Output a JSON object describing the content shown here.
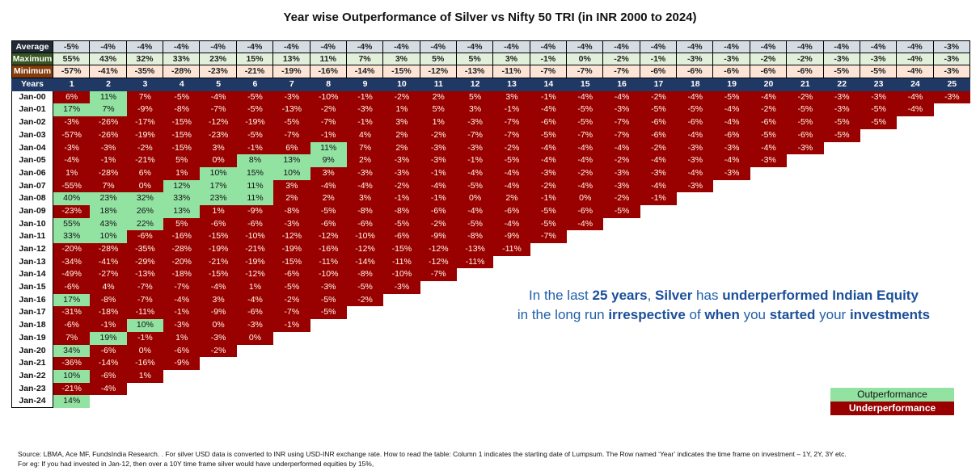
{
  "chart_data": {
    "type": "table",
    "title": "Year wise Outperformance of Silver vs Nifty 50 TRI (in INR 2000 to 2024)",
    "summary_rows": [
      {
        "label": "Average",
        "values": [
          "-5%",
          "-4%",
          "-4%",
          "-4%",
          "-4%",
          "-4%",
          "-4%",
          "-4%",
          "-4%",
          "-4%",
          "-4%",
          "-4%",
          "-4%",
          "-4%",
          "-4%",
          "-4%",
          "-4%",
          "-4%",
          "-4%",
          "-4%",
          "-4%",
          "-4%",
          "-4%",
          "-4%",
          "-3%"
        ]
      },
      {
        "label": "Maximum",
        "values": [
          "55%",
          "43%",
          "32%",
          "33%",
          "23%",
          "15%",
          "13%",
          "11%",
          "7%",
          "3%",
          "5%",
          "5%",
          "3%",
          "-1%",
          "0%",
          "-2%",
          "-1%",
          "-3%",
          "-3%",
          "-2%",
          "-2%",
          "-3%",
          "-3%",
          "-4%",
          "-3%"
        ]
      },
      {
        "label": "Minimum",
        "values": [
          "-57%",
          "-41%",
          "-35%",
          "-28%",
          "-23%",
          "-21%",
          "-19%",
          "-16%",
          "-14%",
          "-15%",
          "-12%",
          "-13%",
          "-11%",
          "-7%",
          "-7%",
          "-7%",
          "-6%",
          "-6%",
          "-6%",
          "-6%",
          "-6%",
          "-5%",
          "-5%",
          "-4%",
          "-3%"
        ]
      }
    ],
    "years_label": "Years",
    "years": [
      "1",
      "2",
      "3",
      "4",
      "5",
      "6",
      "7",
      "8",
      "9",
      "10",
      "11",
      "12",
      "13",
      "14",
      "15",
      "16",
      "17",
      "18",
      "19",
      "20",
      "21",
      "22",
      "23",
      "24",
      "25"
    ],
    "rows": [
      {
        "start": "Jan-00",
        "values": [
          "6%",
          "11%",
          "7%",
          "-5%",
          "-4%",
          "-5%",
          "-3%",
          "-10%",
          "-1%",
          "-2%",
          "2%",
          "5%",
          "3%",
          "-1%",
          "-4%",
          "-4%",
          "-2%",
          "-4%",
          "-5%",
          "-4%",
          "-2%",
          "-3%",
          "-3%",
          "-4%",
          "-3%"
        ],
        "outperform_years": [
          2
        ]
      },
      {
        "start": "Jan-01",
        "values": [
          "17%",
          "7%",
          "-9%",
          "-8%",
          "-7%",
          "-5%",
          "-13%",
          "-2%",
          "-3%",
          "1%",
          "5%",
          "3%",
          "-1%",
          "-4%",
          "-5%",
          "-3%",
          "-5%",
          "-5%",
          "-4%",
          "-2%",
          "-5%",
          "-3%",
          "-5%",
          "-4%"
        ],
        "outperform_years": [
          1,
          2
        ]
      },
      {
        "start": "Jan-02",
        "values": [
          "-3%",
          "-26%",
          "-17%",
          "-15%",
          "-12%",
          "-19%",
          "-5%",
          "-7%",
          "-1%",
          "3%",
          "1%",
          "-3%",
          "-7%",
          "-6%",
          "-5%",
          "-7%",
          "-6%",
          "-6%",
          "-4%",
          "-6%",
          "-5%",
          "-5%",
          "-5%"
        ],
        "outperform_years": []
      },
      {
        "start": "Jan-03",
        "values": [
          "-57%",
          "-26%",
          "-19%",
          "-15%",
          "-23%",
          "-5%",
          "-7%",
          "-1%",
          "4%",
          "2%",
          "-2%",
          "-7%",
          "-7%",
          "-5%",
          "-7%",
          "-7%",
          "-6%",
          "-4%",
          "-6%",
          "-5%",
          "-6%",
          "-5%"
        ],
        "outperform_years": []
      },
      {
        "start": "Jan-04",
        "values": [
          "-3%",
          "-3%",
          "-2%",
          "-15%",
          "3%",
          "-1%",
          "6%",
          "11%",
          "7%",
          "2%",
          "-3%",
          "-3%",
          "-2%",
          "-4%",
          "-4%",
          "-4%",
          "-2%",
          "-3%",
          "-3%",
          "-4%",
          "-3%"
        ],
        "outperform_years": [
          8
        ]
      },
      {
        "start": "Jan-05",
        "values": [
          "-4%",
          "-1%",
          "-21%",
          "5%",
          "0%",
          "8%",
          "13%",
          "9%",
          "2%",
          "-3%",
          "-3%",
          "-1%",
          "-5%",
          "-4%",
          "-4%",
          "-2%",
          "-4%",
          "-3%",
          "-4%",
          "-3%"
        ],
        "outperform_years": [
          6,
          7,
          8
        ]
      },
      {
        "start": "Jan-06",
        "values": [
          "1%",
          "-28%",
          "6%",
          "1%",
          "10%",
          "15%",
          "10%",
          "3%",
          "-3%",
          "-3%",
          "-1%",
          "-4%",
          "-4%",
          "-3%",
          "-2%",
          "-3%",
          "-3%",
          "-4%",
          "-3%"
        ],
        "outperform_years": [
          5,
          6,
          7
        ]
      },
      {
        "start": "Jan-07",
        "values": [
          "-55%",
          "7%",
          "0%",
          "12%",
          "17%",
          "11%",
          "3%",
          "-4%",
          "-4%",
          "-2%",
          "-4%",
          "-5%",
          "-4%",
          "-2%",
          "-4%",
          "-3%",
          "-4%",
          "-3%"
        ],
        "outperform_years": [
          4,
          5,
          6
        ]
      },
      {
        "start": "Jan-08",
        "values": [
          "40%",
          "23%",
          "32%",
          "33%",
          "23%",
          "11%",
          "2%",
          "2%",
          "3%",
          "-1%",
          "-1%",
          "0%",
          "2%",
          "-1%",
          "0%",
          "-2%",
          "-1%"
        ],
        "outperform_years": [
          1,
          2,
          3,
          4,
          5,
          6
        ]
      },
      {
        "start": "Jan-09",
        "values": [
          "-23%",
          "18%",
          "26%",
          "13%",
          "1%",
          "-9%",
          "-8%",
          "-5%",
          "-8%",
          "-8%",
          "-6%",
          "-4%",
          "-6%",
          "-5%",
          "-6%",
          "-5%"
        ],
        "outperform_years": [
          2,
          3,
          4
        ]
      },
      {
        "start": "Jan-10",
        "values": [
          "55%",
          "43%",
          "22%",
          "5%",
          "-6%",
          "-6%",
          "-3%",
          "-6%",
          "-6%",
          "-5%",
          "-2%",
          "-5%",
          "-4%",
          "-5%",
          "-4%"
        ],
        "outperform_years": [
          1,
          2,
          3
        ]
      },
      {
        "start": "Jan-11",
        "values": [
          "33%",
          "10%",
          "-6%",
          "-16%",
          "-15%",
          "-10%",
          "-12%",
          "-12%",
          "-10%",
          "-6%",
          "-9%",
          "-8%",
          "-9%",
          "-7%"
        ],
        "outperform_years": [
          1,
          2
        ]
      },
      {
        "start": "Jan-12",
        "values": [
          "-20%",
          "-28%",
          "-35%",
          "-28%",
          "-19%",
          "-21%",
          "-19%",
          "-16%",
          "-12%",
          "-15%",
          "-12%",
          "-13%",
          "-11%"
        ],
        "outperform_years": []
      },
      {
        "start": "Jan-13",
        "values": [
          "-34%",
          "-41%",
          "-29%",
          "-20%",
          "-21%",
          "-19%",
          "-15%",
          "-11%",
          "-14%",
          "-11%",
          "-12%",
          "-11%"
        ],
        "outperform_years": []
      },
      {
        "start": "Jan-14",
        "values": [
          "-49%",
          "-27%",
          "-13%",
          "-18%",
          "-15%",
          "-12%",
          "-6%",
          "-10%",
          "-8%",
          "-10%",
          "-7%"
        ],
        "outperform_years": []
      },
      {
        "start": "Jan-15",
        "values": [
          "-6%",
          "4%",
          "-7%",
          "-7%",
          "-4%",
          "1%",
          "-5%",
          "-3%",
          "-5%",
          "-3%"
        ],
        "outperform_years": []
      },
      {
        "start": "Jan-16",
        "values": [
          "17%",
          "-8%",
          "-7%",
          "-4%",
          "3%",
          "-4%",
          "-2%",
          "-5%",
          "-2%"
        ],
        "outperform_years": [
          1
        ]
      },
      {
        "start": "Jan-17",
        "values": [
          "-31%",
          "-18%",
          "-11%",
          "-1%",
          "-9%",
          "-6%",
          "-7%",
          "-5%"
        ],
        "outperform_years": []
      },
      {
        "start": "Jan-18",
        "values": [
          "-6%",
          "-1%",
          "10%",
          "-3%",
          "0%",
          "-3%",
          "-1%"
        ],
        "outperform_years": [
          3
        ]
      },
      {
        "start": "Jan-19",
        "values": [
          "7%",
          "19%",
          "-1%",
          "1%",
          "-3%",
          "0%"
        ],
        "outperform_years": [
          2
        ]
      },
      {
        "start": "Jan-20",
        "values": [
          "34%",
          "-6%",
          "0%",
          "-6%",
          "-2%"
        ],
        "outperform_years": [
          1
        ]
      },
      {
        "start": "Jan-21",
        "values": [
          "-36%",
          "-14%",
          "-16%",
          "-9%"
        ],
        "outperform_years": []
      },
      {
        "start": "Jan-22",
        "values": [
          "10%",
          "-6%",
          "1%"
        ],
        "outperform_years": [
          1
        ]
      },
      {
        "start": "Jan-23",
        "values": [
          "-21%",
          "-4%"
        ],
        "outperform_years": []
      },
      {
        "start": "Jan-24",
        "values": [
          "14%"
        ],
        "outperform_years": [
          1
        ]
      }
    ],
    "legend": {
      "outperformance": "Outperformance",
      "underperformance": "Underperformance"
    },
    "colors": {
      "outperformance": "#92e2a2",
      "underperformance": "#990000"
    }
  },
  "callout": {
    "line1": [
      {
        "t": "In the last ",
        "b": false
      },
      {
        "t": "25 years",
        "b": true
      },
      {
        "t": ", ",
        "b": false
      },
      {
        "t": "Silver",
        "b": true
      },
      {
        "t": " has ",
        "b": false
      },
      {
        "t": "underperformed Indian Equity",
        "b": true
      }
    ],
    "line2": [
      {
        "t": "in the long run ",
        "b": false
      },
      {
        "t": "irrespective",
        "b": true
      },
      {
        "t": " of ",
        "b": false
      },
      {
        "t": "when",
        "b": true
      },
      {
        "t": " you ",
        "b": false
      },
      {
        "t": "started",
        "b": true
      },
      {
        "t": " your ",
        "b": false
      },
      {
        "t": "investments",
        "b": true
      }
    ]
  },
  "footnote": {
    "line1": "Source: LBMA, Ace MF, FundsIndia Research. . For silver USD data is converted to INR using USD-INR exchange rate. How to read the table: Column 1 indicates the starting date of Lumpsum. The Row named ‘Year’ indicates the time frame on investment  – 1Y, 2Y, 3Y etc.",
    "line2": "For eg: If you had invested in Jan-12, then over a 10Y time frame silver would have underperformed equities by 15%,"
  }
}
